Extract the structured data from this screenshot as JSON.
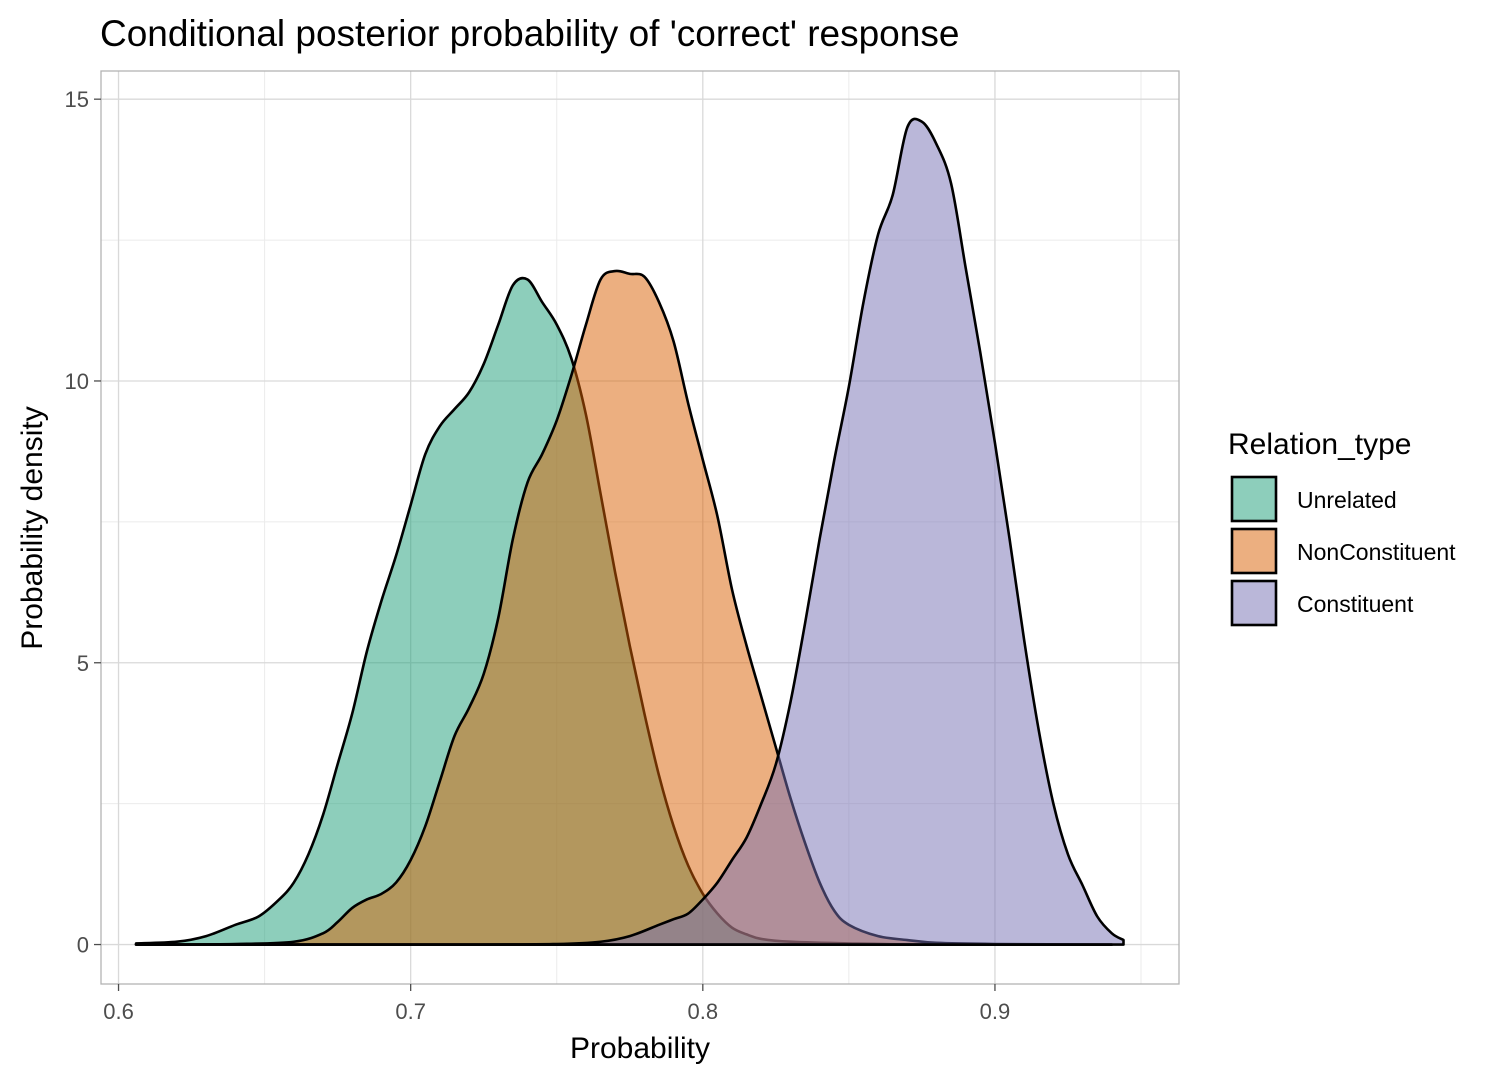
{
  "chart_data": {
    "type": "area",
    "title": "Conditional posterior probability of 'correct' response",
    "xlabel": "Probability",
    "ylabel": "Probability density",
    "xlim": [
      0.594,
      0.963
    ],
    "ylim": [
      -0.7,
      15.5
    ],
    "x_ticks": [
      0.6,
      0.7,
      0.8,
      0.9
    ],
    "x_tick_labels": [
      "0.6",
      "0.7",
      "0.8",
      "0.9"
    ],
    "y_ticks": [
      0,
      5,
      10,
      15
    ],
    "y_tick_labels": [
      "0",
      "5",
      "10",
      "15"
    ],
    "grid": true,
    "legend": {
      "title": "Relation_type",
      "position": "right"
    },
    "series": [
      {
        "name": "Unrelated",
        "color": "#1B9E77",
        "points": [
          [
            0.606,
            0.02
          ],
          [
            0.62,
            0.05
          ],
          [
            0.63,
            0.15
          ],
          [
            0.64,
            0.35
          ],
          [
            0.648,
            0.5
          ],
          [
            0.655,
            0.8
          ],
          [
            0.66,
            1.1
          ],
          [
            0.665,
            1.6
          ],
          [
            0.67,
            2.3
          ],
          [
            0.675,
            3.2
          ],
          [
            0.68,
            4.1
          ],
          [
            0.685,
            5.2
          ],
          [
            0.69,
            6.1
          ],
          [
            0.695,
            6.9
          ],
          [
            0.7,
            7.8
          ],
          [
            0.705,
            8.7
          ],
          [
            0.71,
            9.2
          ],
          [
            0.715,
            9.5
          ],
          [
            0.72,
            9.8
          ],
          [
            0.725,
            10.3
          ],
          [
            0.73,
            11.0
          ],
          [
            0.735,
            11.7
          ],
          [
            0.74,
            11.8
          ],
          [
            0.745,
            11.4
          ],
          [
            0.75,
            11.0
          ],
          [
            0.755,
            10.4
          ],
          [
            0.76,
            9.4
          ],
          [
            0.765,
            8.0
          ],
          [
            0.77,
            6.6
          ],
          [
            0.775,
            5.3
          ],
          [
            0.78,
            4.1
          ],
          [
            0.785,
            3.0
          ],
          [
            0.79,
            2.1
          ],
          [
            0.795,
            1.4
          ],
          [
            0.8,
            0.9
          ],
          [
            0.805,
            0.55
          ],
          [
            0.81,
            0.3
          ],
          [
            0.815,
            0.18
          ],
          [
            0.82,
            0.1
          ],
          [
            0.83,
            0.05
          ],
          [
            0.85,
            0.02
          ],
          [
            0.88,
            0.0
          ],
          [
            0.94,
            0.0
          ]
        ]
      },
      {
        "name": "NonConstituent",
        "color": "#D95F02",
        "points": [
          [
            0.606,
            0.0
          ],
          [
            0.64,
            0.01
          ],
          [
            0.66,
            0.05
          ],
          [
            0.67,
            0.2
          ],
          [
            0.675,
            0.4
          ],
          [
            0.68,
            0.65
          ],
          [
            0.685,
            0.8
          ],
          [
            0.69,
            0.9
          ],
          [
            0.695,
            1.1
          ],
          [
            0.7,
            1.5
          ],
          [
            0.705,
            2.1
          ],
          [
            0.71,
            2.9
          ],
          [
            0.715,
            3.7
          ],
          [
            0.72,
            4.2
          ],
          [
            0.725,
            4.8
          ],
          [
            0.73,
            5.8
          ],
          [
            0.735,
            7.2
          ],
          [
            0.74,
            8.2
          ],
          [
            0.745,
            8.7
          ],
          [
            0.75,
            9.3
          ],
          [
            0.755,
            10.1
          ],
          [
            0.76,
            11.0
          ],
          [
            0.765,
            11.8
          ],
          [
            0.77,
            11.95
          ],
          [
            0.775,
            11.9
          ],
          [
            0.78,
            11.85
          ],
          [
            0.785,
            11.4
          ],
          [
            0.79,
            10.7
          ],
          [
            0.795,
            9.6
          ],
          [
            0.8,
            8.6
          ],
          [
            0.805,
            7.6
          ],
          [
            0.81,
            6.3
          ],
          [
            0.815,
            5.3
          ],
          [
            0.82,
            4.4
          ],
          [
            0.825,
            3.5
          ],
          [
            0.83,
            2.6
          ],
          [
            0.835,
            1.8
          ],
          [
            0.84,
            1.1
          ],
          [
            0.845,
            0.6
          ],
          [
            0.85,
            0.35
          ],
          [
            0.86,
            0.15
          ],
          [
            0.87,
            0.08
          ],
          [
            0.88,
            0.03
          ],
          [
            0.9,
            0.01
          ],
          [
            0.94,
            0.0
          ]
        ]
      },
      {
        "name": "Constituent",
        "color": "#7570B3",
        "points": [
          [
            0.606,
            0.0
          ],
          [
            0.72,
            0.0
          ],
          [
            0.75,
            0.01
          ],
          [
            0.765,
            0.05
          ],
          [
            0.775,
            0.15
          ],
          [
            0.785,
            0.35
          ],
          [
            0.79,
            0.45
          ],
          [
            0.795,
            0.55
          ],
          [
            0.8,
            0.8
          ],
          [
            0.805,
            1.1
          ],
          [
            0.81,
            1.5
          ],
          [
            0.815,
            1.9
          ],
          [
            0.82,
            2.5
          ],
          [
            0.825,
            3.2
          ],
          [
            0.83,
            4.3
          ],
          [
            0.835,
            5.7
          ],
          [
            0.84,
            7.2
          ],
          [
            0.845,
            8.6
          ],
          [
            0.85,
            9.9
          ],
          [
            0.855,
            11.4
          ],
          [
            0.86,
            12.6
          ],
          [
            0.865,
            13.3
          ],
          [
            0.87,
            14.5
          ],
          [
            0.875,
            14.6
          ],
          [
            0.88,
            14.2
          ],
          [
            0.885,
            13.5
          ],
          [
            0.89,
            12.0
          ],
          [
            0.895,
            10.5
          ],
          [
            0.9,
            8.9
          ],
          [
            0.905,
            7.2
          ],
          [
            0.91,
            5.4
          ],
          [
            0.915,
            3.8
          ],
          [
            0.92,
            2.5
          ],
          [
            0.925,
            1.6
          ],
          [
            0.93,
            1.05
          ],
          [
            0.935,
            0.5
          ],
          [
            0.94,
            0.2
          ],
          [
            0.944,
            0.08
          ]
        ]
      }
    ]
  }
}
